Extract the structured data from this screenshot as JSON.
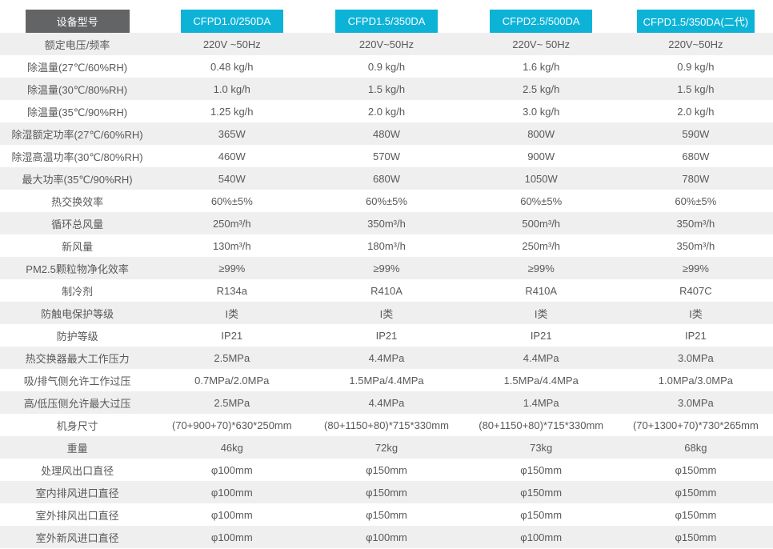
{
  "colors": {
    "accent_cyan": "#0db3d7",
    "corner_tab_gray": "#636466",
    "row_alt_bg": "#efefef",
    "text_gray": "#58595b"
  },
  "table": {
    "corner_label": "设备型号",
    "models": [
      "CFPD1.0/250DA",
      "CFPD1.5/350DA",
      "CFPD2.5/500DA",
      "CFPD1.5/350DA(二代)"
    ],
    "rows": [
      {
        "label": "额定电压/频率",
        "values": [
          "220V ~50Hz",
          "220V~50Hz",
          "220V~ 50Hz",
          "220V~50Hz"
        ]
      },
      {
        "label": "除温量(27℃/60%RH)",
        "values": [
          "0.48 kg/h",
          "0.9 kg/h",
          "1.6 kg/h",
          "0.9 kg/h"
        ]
      },
      {
        "label": "除温量(30℃/80%RH)",
        "values": [
          "1.0 kg/h",
          "1.5 kg/h",
          "2.5 kg/h",
          "1.5 kg/h"
        ]
      },
      {
        "label": "除温量(35℃/90%RH)",
        "values": [
          "1.25 kg/h",
          "2.0 kg/h",
          "3.0 kg/h",
          "2.0 kg/h"
        ]
      },
      {
        "label": "除湿额定功率(27℃/60%RH)",
        "values": [
          "365W",
          "480W",
          "800W",
          "590W"
        ]
      },
      {
        "label": "除湿高温功率(30℃/80%RH)",
        "values": [
          "460W",
          "570W",
          "900W",
          "680W"
        ]
      },
      {
        "label": "最大功率(35℃/90%RH)",
        "values": [
          "540W",
          "680W",
          "1050W",
          "780W"
        ]
      },
      {
        "label": "热交换效率",
        "values": [
          "60%±5%",
          "60%±5%",
          "60%±5%",
          "60%±5%"
        ]
      },
      {
        "label": "循环总风量",
        "values": [
          "250m³/h",
          "350m³/h",
          "500m³/h",
          "350m³/h"
        ]
      },
      {
        "label": "新风量",
        "values": [
          "130m³/h",
          "180m³/h",
          "250m³/h",
          "350m³/h"
        ]
      },
      {
        "label": "PM2.5颗粒物净化效率",
        "values": [
          "≥99%",
          "≥99%",
          "≥99%",
          "≥99%"
        ]
      },
      {
        "label": "制冷剂",
        "values": [
          "R134a",
          "R410A",
          "R410A",
          "R407C"
        ]
      },
      {
        "label": "防触电保护等级",
        "values": [
          "I类",
          "I类",
          "I类",
          "I类"
        ]
      },
      {
        "label": "防护等级",
        "values": [
          "IP21",
          "IP21",
          "IP21",
          "IP21"
        ]
      },
      {
        "label": "热交换器最大工作压力",
        "values": [
          "2.5MPa",
          "4.4MPa",
          "4.4MPa",
          "3.0MPa"
        ]
      },
      {
        "label": "吸/排气侧允许工作过压",
        "values": [
          "0.7MPa/2.0MPa",
          "1.5MPa/4.4MPa",
          "1.5MPa/4.4MPa",
          "1.0MPa/3.0MPa"
        ]
      },
      {
        "label": "高/低压侧允许最大过压",
        "values": [
          "2.5MPa",
          "4.4MPa",
          "1.4MPa",
          "3.0MPa"
        ]
      },
      {
        "label": "机身尺寸",
        "values": [
          "(70+900+70)*630*250mm",
          "(80+1150+80)*715*330mm",
          "(80+1150+80)*715*330mm",
          "(70+1300+70)*730*265mm"
        ]
      },
      {
        "label": "重量",
        "values": [
          "46kg",
          "72kg",
          "73kg",
          "68kg"
        ]
      },
      {
        "label": "处理风出口直径",
        "values": [
          "φ100mm",
          "φ150mm",
          "φ150mm",
          "φ150mm"
        ]
      },
      {
        "label": "室内排风进口直径",
        "values": [
          "φ100mm",
          "φ150mm",
          "φ150mm",
          "φ150mm"
        ]
      },
      {
        "label": "室外排风出口直径",
        "values": [
          "φ100mm",
          "φ150mm",
          "φ150mm",
          "φ150mm"
        ]
      },
      {
        "label": "室外新风进口直径",
        "values": [
          "φ100mm",
          "φ100mm",
          "φ100mm",
          "φ150mm"
        ]
      }
    ]
  }
}
